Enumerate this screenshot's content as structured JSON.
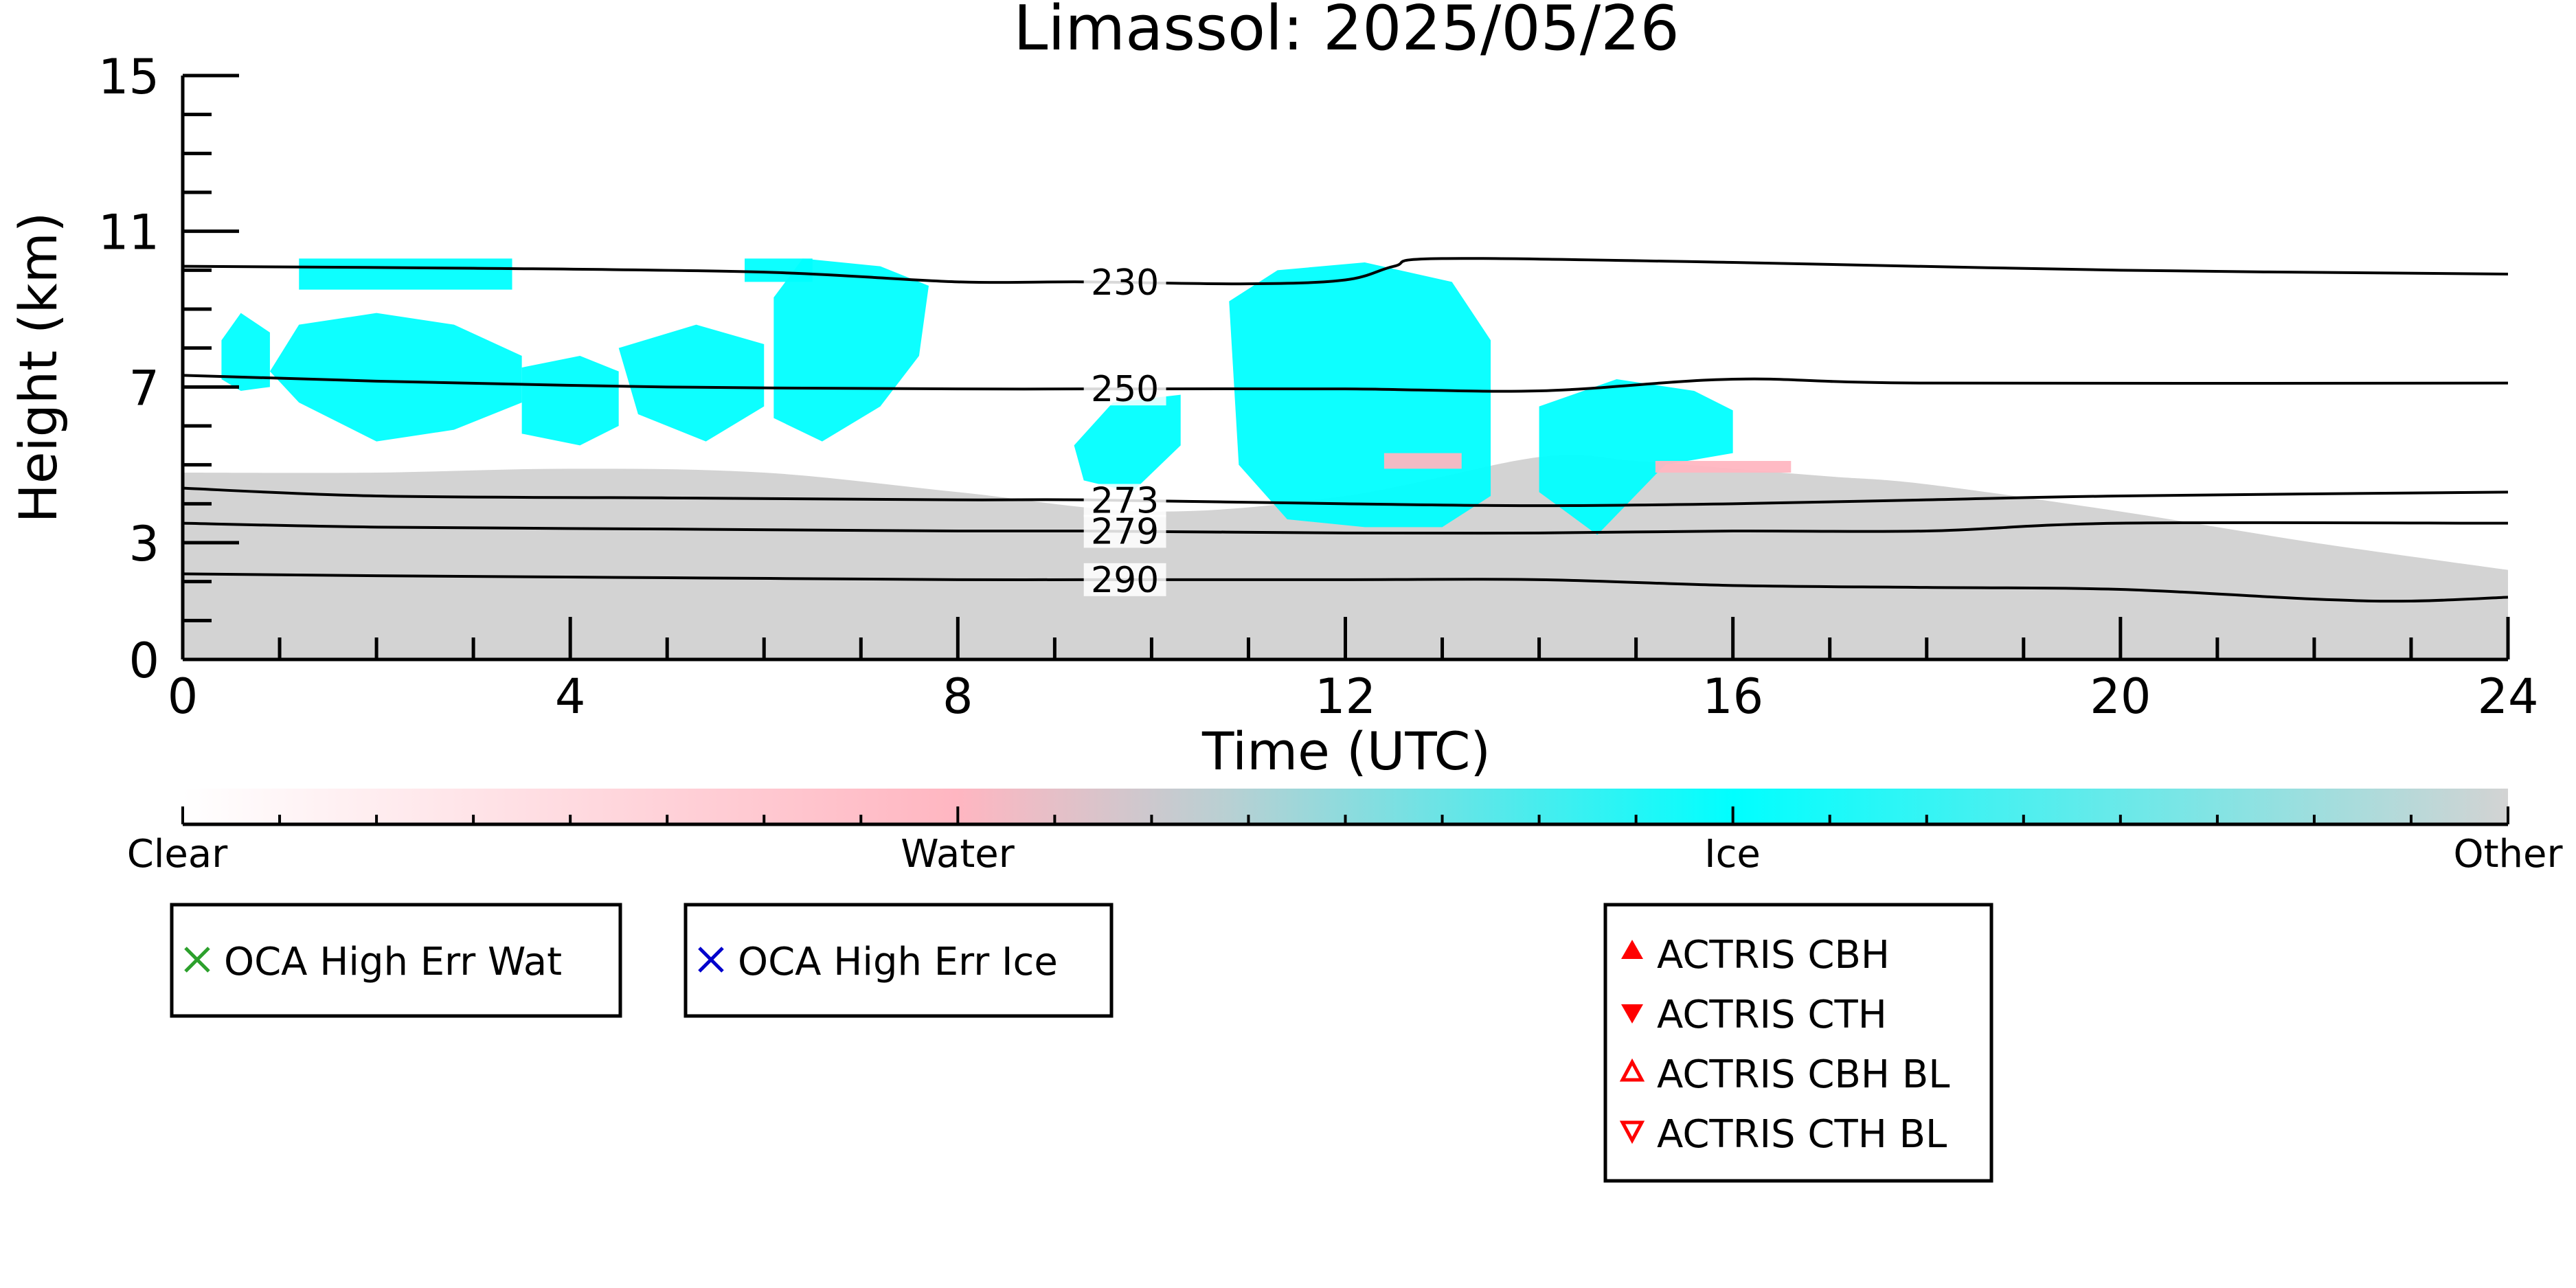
{
  "chart_data": {
    "type": "heatmap",
    "title": "Limassol: 2025/05/26",
    "xlabel": "Time (UTC)",
    "ylabel": "Height (km)",
    "xlim": [
      0,
      24
    ],
    "ylim": [
      0,
      15
    ],
    "x_ticks": [
      "0",
      "4",
      "8",
      "12",
      "16",
      "20",
      "24"
    ],
    "y_ticks": [
      "0",
      "3",
      "7",
      "11",
      "15"
    ],
    "grid": false,
    "colorbar": {
      "labels": [
        "Clear",
        "Water",
        "Ice",
        "Other"
      ],
      "colors": [
        "#ffffff",
        "#ffb6c1",
        "#00ffff",
        "#d3d3d3"
      ]
    },
    "temperature_contours": [
      {
        "label": "230",
        "x": [
          0,
          3,
          6,
          8,
          9.3,
          11,
          12,
          12.5,
          13,
          16,
          20,
          24
        ],
        "y": [
          10.1,
          10.05,
          9.95,
          9.7,
          9.7,
          9.65,
          9.75,
          10.1,
          10.3,
          10.2,
          10.0,
          9.9
        ]
      },
      {
        "label": "250",
        "x": [
          0,
          2,
          5,
          8,
          9.3,
          12,
          14,
          16,
          18,
          24
        ],
        "y": [
          7.3,
          7.15,
          7.0,
          6.95,
          6.95,
          6.95,
          6.9,
          7.2,
          7.1,
          7.1
        ]
      },
      {
        "label": "273",
        "x": [
          0,
          2,
          5,
          8,
          9.3,
          12,
          14,
          16,
          18,
          20,
          24
        ],
        "y": [
          4.4,
          4.2,
          4.15,
          4.1,
          4.1,
          4.0,
          3.95,
          4.0,
          4.1,
          4.2,
          4.3
        ]
      },
      {
        "label": "279",
        "x": [
          0,
          2,
          5,
          8,
          9.3,
          12,
          14,
          16,
          18,
          20,
          24
        ],
        "y": [
          3.5,
          3.4,
          3.35,
          3.3,
          3.3,
          3.25,
          3.25,
          3.3,
          3.3,
          3.5,
          3.5
        ]
      },
      {
        "label": "290",
        "x": [
          0,
          2,
          5,
          8,
          9.3,
          12,
          14,
          16,
          18,
          20,
          22,
          23,
          24
        ],
        "y": [
          2.2,
          2.15,
          2.1,
          2.05,
          2.05,
          2.05,
          2.05,
          1.9,
          1.85,
          1.8,
          1.55,
          1.5,
          1.6
        ]
      }
    ],
    "classification_regions": [
      {
        "class": "Other",
        "x": [
          0,
          2,
          4,
          6,
          8,
          10,
          12,
          14,
          15,
          16,
          17,
          18,
          20,
          22,
          24
        ],
        "top": [
          4.8,
          4.8,
          4.9,
          4.8,
          4.3,
          3.8,
          4.2,
          5.2,
          5.1,
          4.9,
          4.7,
          4.5,
          3.8,
          3.0,
          2.3
        ]
      },
      {
        "class": "Ice",
        "x": [
          0.9,
          1.2,
          2.0,
          2.8,
          3.5,
          3.5,
          2.8,
          2.0,
          1.2
        ],
        "y": [
          7.4,
          8.6,
          8.9,
          8.6,
          7.8,
          6.6,
          5.9,
          5.6,
          6.6
        ]
      },
      {
        "class": "Ice",
        "x": [
          0.4,
          0.6,
          0.9,
          0.9,
          0.6,
          0.4
        ],
        "y": [
          8.2,
          8.9,
          8.4,
          7.0,
          6.9,
          7.2
        ]
      },
      {
        "class": "Ice",
        "x": [
          3.5,
          4.1,
          4.5,
          4.5,
          4.1,
          3.5
        ],
        "y": [
          7.5,
          7.8,
          7.4,
          6.0,
          5.5,
          5.8
        ]
      },
      {
        "class": "Ice",
        "x": [
          4.5,
          5.3,
          6.0,
          6.0,
          5.4,
          4.7
        ],
        "y": [
          8.0,
          8.6,
          8.1,
          6.5,
          5.6,
          6.3
        ]
      },
      {
        "class": "Ice",
        "x": [
          6.1,
          6.4,
          7.2,
          7.7,
          7.6,
          7.2,
          6.6,
          6.1
        ],
        "y": [
          9.3,
          10.3,
          10.1,
          9.6,
          7.8,
          6.5,
          5.6,
          6.2
        ]
      },
      {
        "class": "Ice",
        "x": [
          9.2,
          9.6,
          10.3,
          10.3,
          9.8,
          9.3
        ],
        "y": [
          5.5,
          6.6,
          6.8,
          5.5,
          4.3,
          4.6
        ]
      },
      {
        "class": "Ice",
        "x": [
          10.8,
          11.3,
          12.2,
          13.1,
          13.5,
          13.5,
          13.0,
          12.2,
          11.4,
          10.9
        ],
        "y": [
          9.2,
          10.0,
          10.2,
          9.7,
          8.2,
          4.2,
          3.4,
          3.4,
          3.6,
          5.0
        ]
      },
      {
        "class": "Ice",
        "x": [
          14.0,
          14.8,
          15.6,
          16.0,
          16.0,
          15.3,
          14.6,
          14.0
        ],
        "y": [
          6.5,
          7.2,
          6.9,
          6.4,
          5.3,
          5.0,
          3.2,
          4.3
        ]
      },
      {
        "class": "Ice",
        "x": [
          1.2,
          3.4,
          3.4,
          1.2
        ],
        "y": [
          10.3,
          10.3,
          9.5,
          9.5
        ]
      },
      {
        "class": "Ice",
        "x": [
          5.8,
          6.5,
          6.5,
          5.8
        ],
        "y": [
          10.3,
          10.3,
          9.7,
          9.7
        ]
      },
      {
        "class": "Water",
        "x": [
          12.4,
          13.2,
          13.2,
          12.4
        ],
        "y": [
          5.3,
          5.3,
          4.9,
          4.9
        ]
      },
      {
        "class": "Water",
        "x": [
          15.2,
          16.6,
          16.6,
          15.2
        ],
        "y": [
          5.1,
          5.1,
          4.8,
          4.8
        ]
      }
    ],
    "legends": [
      {
        "entries": [
          {
            "marker": "x",
            "color": "#2ca02c",
            "label": "OCA High Err Wat"
          }
        ]
      },
      {
        "entries": [
          {
            "marker": "x",
            "color": "#0000cc",
            "label": "OCA High Err Ice"
          }
        ]
      },
      {
        "entries": [
          {
            "marker": "triangle-up",
            "color": "#ff0000",
            "label": "ACTRIS CBH"
          },
          {
            "marker": "triangle-down",
            "color": "#ff0000",
            "label": "ACTRIS CTH"
          },
          {
            "marker": "triangle-up-open",
            "color": "#ff0000",
            "label": "ACTRIS CBH BL"
          },
          {
            "marker": "triangle-down-open",
            "color": "#ff0000",
            "label": "ACTRIS CTH BL"
          }
        ]
      }
    ]
  }
}
